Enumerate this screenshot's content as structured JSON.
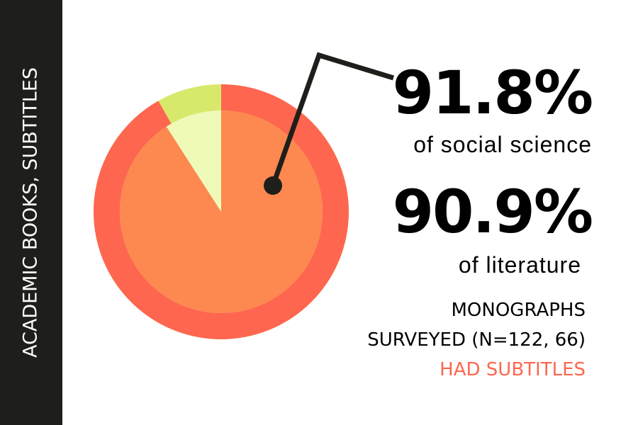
{
  "sidebar": "ACADEMIC BOOKS,  SUBTITLES",
  "chart_data": {
    "type": "nested-pie",
    "series": [
      {
        "name": "of social science",
        "values": [
          91.8
        ],
        "value_labels": [
          "91.8%"
        ],
        "color": "#fe6650",
        "remainder_color": "#d8e86a"
      },
      {
        "name": "of literature",
        "values": [
          90.9
        ],
        "value_labels": [
          "90.9%"
        ],
        "color": "#fd8850",
        "remainder_color": "#effab8"
      }
    ],
    "caption": [
      "MONOGRAPHS",
      "SURVEYED (N=122, 66)",
      "HAD SUBTITLES"
    ],
    "caption_highlight_color": "#fe6650"
  }
}
